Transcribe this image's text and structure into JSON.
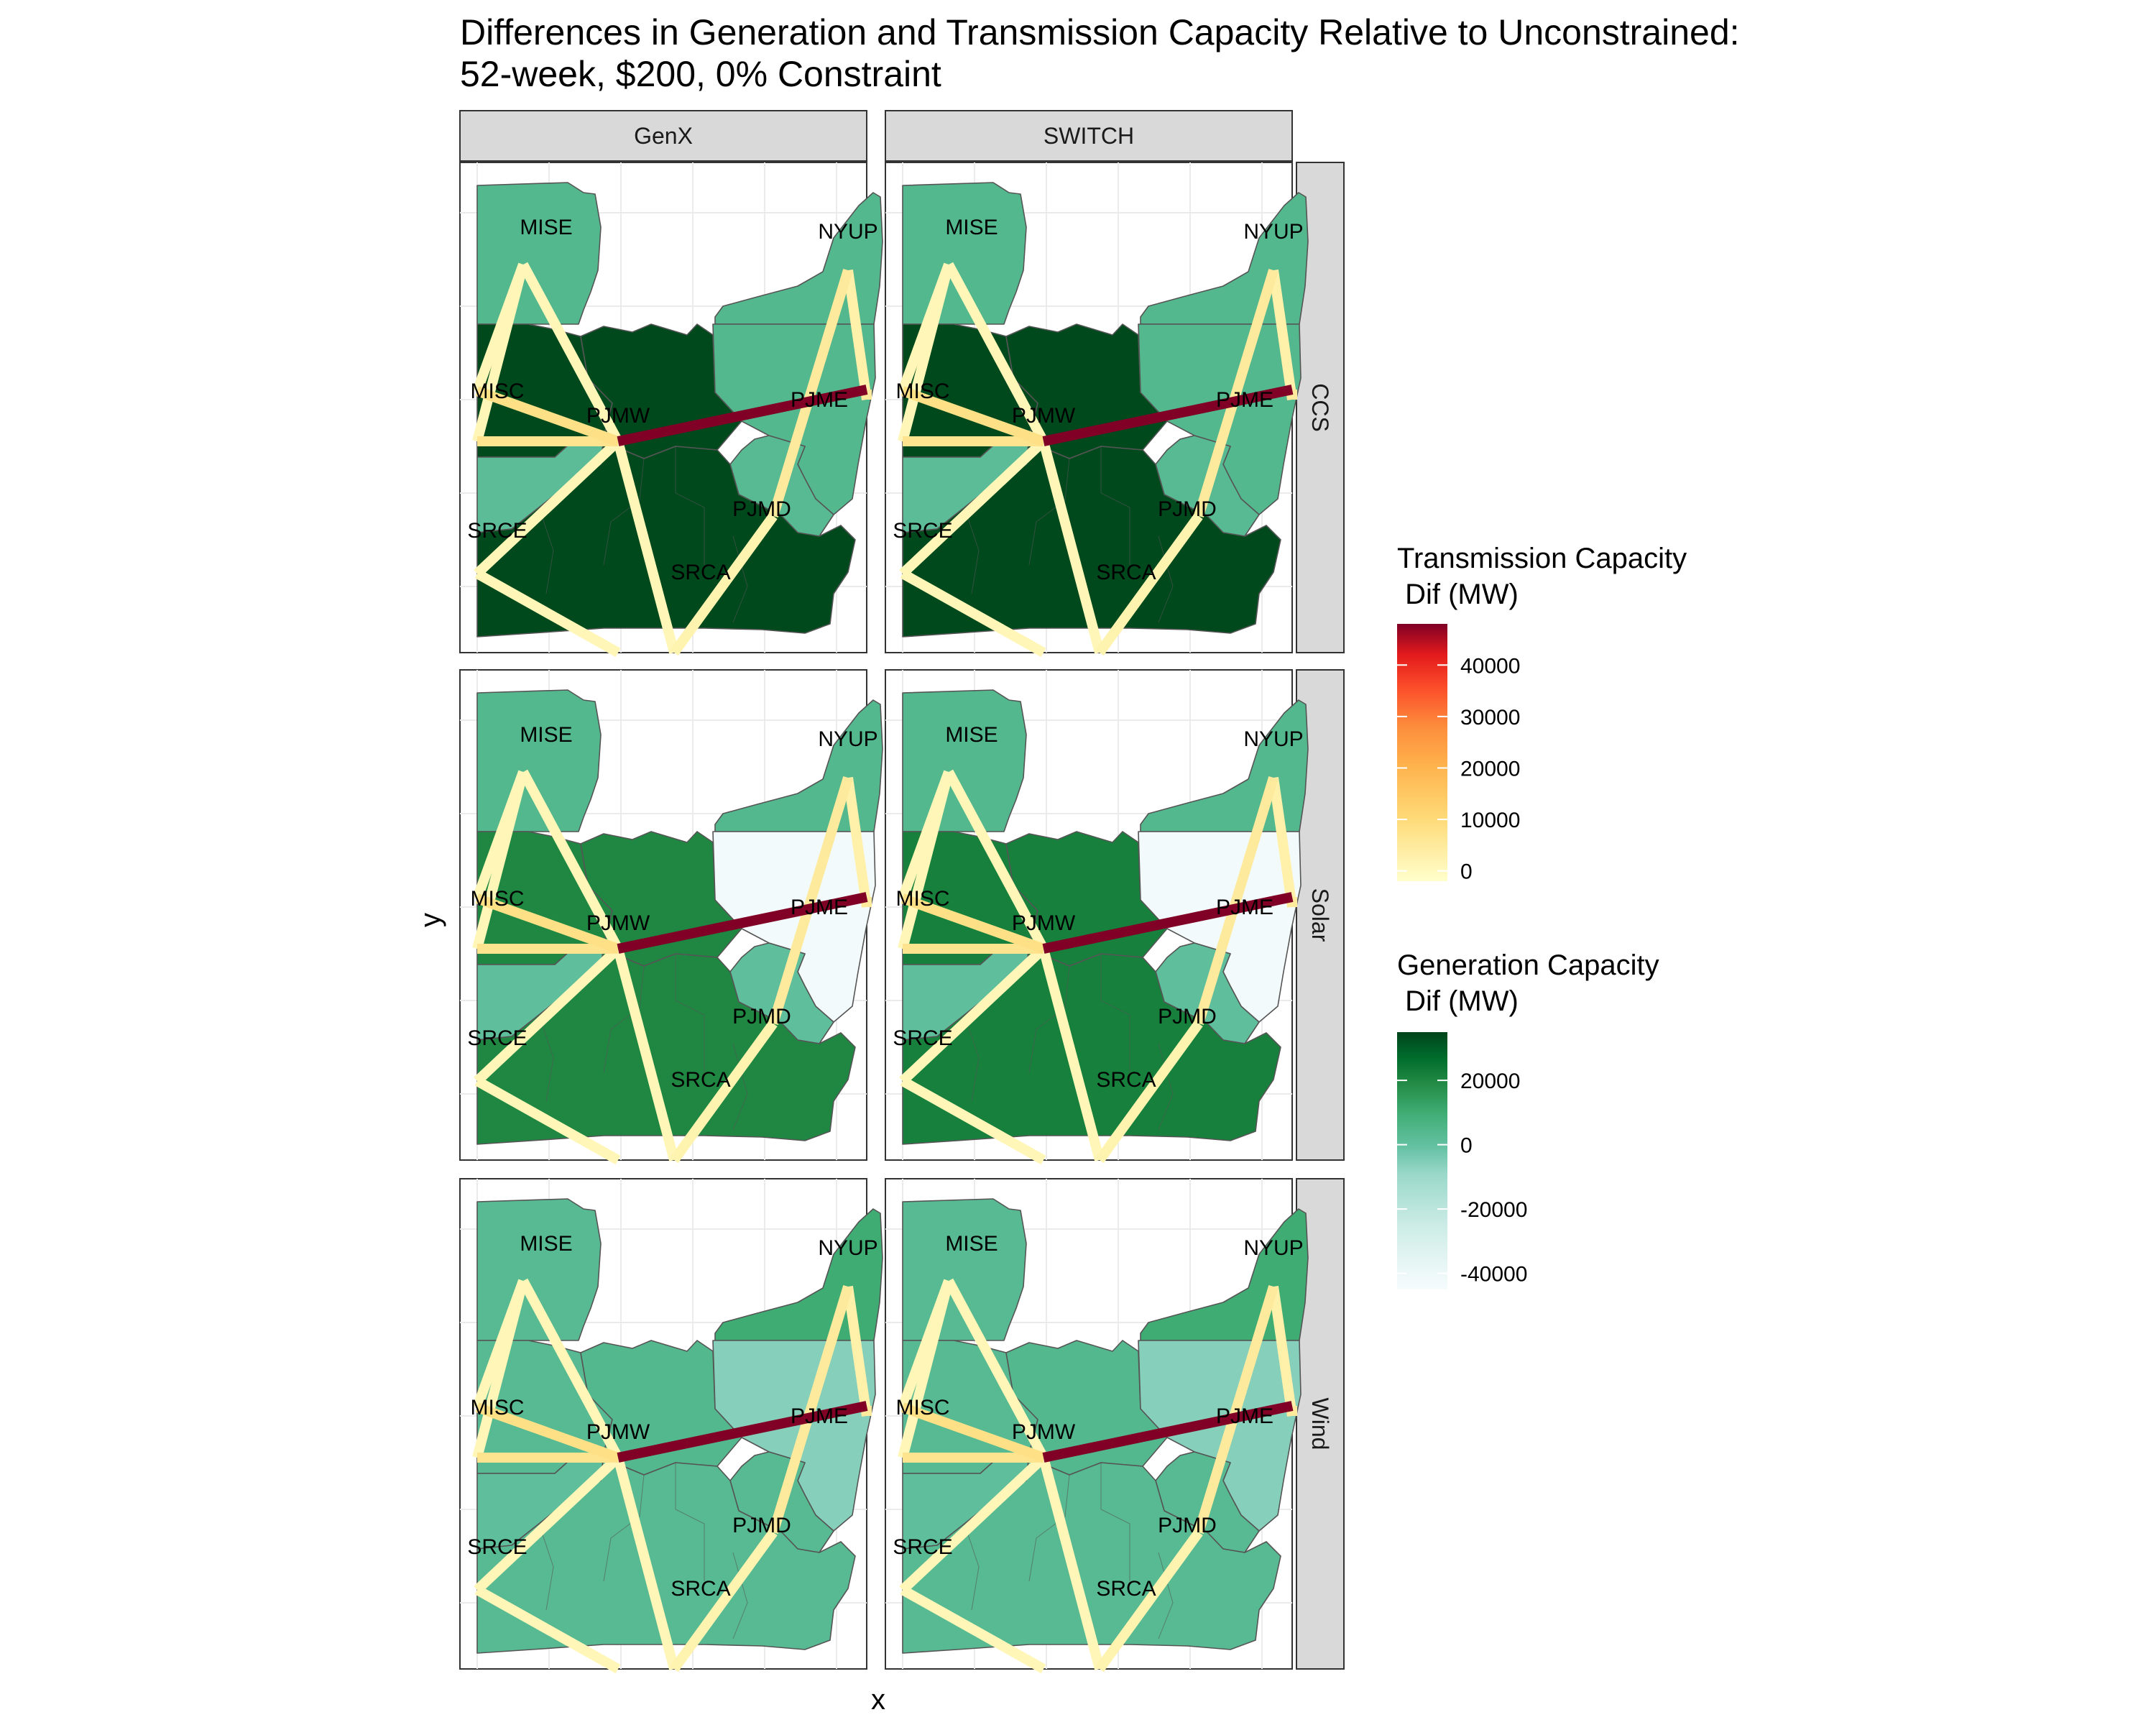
{
  "title_line1": "Differences in Generation and Transmission Capacity Relative to Unconstrained:",
  "title_line2": "52-week, $200, 0% Constraint",
  "xlabel": "x",
  "ylabel": "y",
  "colors": {
    "strip_bg": "#d9d9d9",
    "grid": "#ebebeb",
    "state_border": "#555555",
    "transmission_low": "#ffffcc",
    "transmission_mid": "#fd8d3c",
    "transmission_high": "#800026",
    "generation_low": "#f7fcfd",
    "generation_mid": "#66c2a4",
    "generation_high": "#00441b"
  },
  "chart_data": {
    "type": "map",
    "columns": [
      "GenX",
      "SWITCH"
    ],
    "rows": [
      "CCS",
      "Solar",
      "Wind"
    ],
    "zones": [
      "MISE",
      "NYUP",
      "MISC",
      "PJMW",
      "PJME",
      "SRCE",
      "PJMD",
      "SRCA"
    ],
    "generation_legend": {
      "title_line1": "Generation Capacity",
      "title_line2": " Dif (MW)",
      "ticks": [
        20000,
        0,
        -20000,
        -40000
      ],
      "tick_labels": [
        "20000",
        "0",
        "-20000",
        "-40000"
      ],
      "range": [
        -45000,
        35000
      ]
    },
    "transmission_legend": {
      "title_line1": "Transmission Capacity",
      "title_line2": " Dif (MW)",
      "ticks": [
        40000,
        30000,
        20000,
        10000,
        0
      ],
      "tick_labels": [
        "40000",
        "30000",
        "20000",
        "10000",
        "0"
      ],
      "range": [
        -2000,
        48000
      ]
    },
    "transmission_lines": [
      {
        "from": "PJMW",
        "to": "PJME",
        "value": 48000
      },
      {
        "from": "PJMW",
        "to": "MISC",
        "value": 8000
      },
      {
        "from": "PJMW",
        "to": "MISE",
        "value": 1000
      },
      {
        "from": "PJMW",
        "to": "SRCE",
        "value": 1000
      },
      {
        "from": "PJMW",
        "to": "SRCA",
        "value": 1000
      },
      {
        "from": "PJMW",
        "to": "west",
        "value": 7000
      },
      {
        "from": "PJMD",
        "to": "NYUP",
        "value": 5000
      },
      {
        "from": "PJMD",
        "to": "SRCA",
        "value": 2000
      },
      {
        "from": "MISE",
        "to": "west",
        "value": 1000
      },
      {
        "from": "MISE",
        "to": "MISC",
        "value": 1000
      },
      {
        "from": "SRCE",
        "to": "south",
        "value": 1000
      },
      {
        "from": "NYUP",
        "to": "east",
        "value": 3000
      },
      {
        "from": "PJME",
        "to": "east",
        "value": 5000
      }
    ],
    "panels": [
      {
        "resource": "CCS",
        "model": "GenX",
        "generation": {
          "MISE": 4000,
          "NYUP": 4000,
          "MISC": 34000,
          "PJMW": 34000,
          "PJME": 4000,
          "SRCE": 2000,
          "PJMD": 3000,
          "SRCA": 34000
        }
      },
      {
        "resource": "CCS",
        "model": "SWITCH",
        "generation": {
          "MISE": 4000,
          "NYUP": 4000,
          "MISC": 34000,
          "PJMW": 34000,
          "PJME": 4000,
          "SRCE": 2000,
          "PJMD": 3000,
          "SRCA": 34000
        }
      },
      {
        "resource": "Solar",
        "model": "GenX",
        "generation": {
          "MISE": 4000,
          "NYUP": 4000,
          "MISC": 20000,
          "PJMW": 20000,
          "PJME": -43000,
          "SRCE": 1000,
          "PJMD": 1000,
          "SRCA": 20000
        }
      },
      {
        "resource": "Solar",
        "model": "SWITCH",
        "generation": {
          "MISE": 4000,
          "NYUP": 4000,
          "MISC": 22000,
          "PJMW": 22000,
          "PJME": -43000,
          "SRCE": 1000,
          "PJMD": 1000,
          "SRCA": 22000
        }
      },
      {
        "resource": "Wind",
        "model": "GenX",
        "generation": {
          "MISE": 3000,
          "NYUP": 10000,
          "MISC": 3000,
          "PJMW": 4000,
          "PJME": -6000,
          "SRCE": 1000,
          "PJMD": 3000,
          "SRCA": 3000
        }
      },
      {
        "resource": "Wind",
        "model": "SWITCH",
        "generation": {
          "MISE": 3000,
          "NYUP": 10000,
          "MISC": 3000,
          "PJMW": 4000,
          "PJME": -6000,
          "SRCE": 1000,
          "PJMD": 3000,
          "SRCA": 3000
        }
      }
    ]
  }
}
